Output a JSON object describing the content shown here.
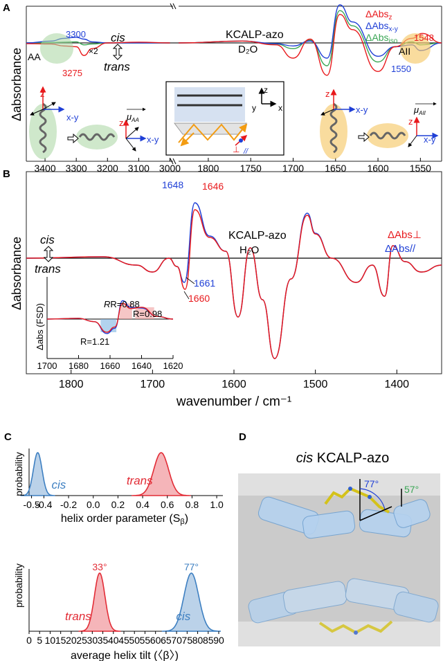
{
  "chart_data": [
    {
      "panel": "A",
      "type": "line",
      "ylabel": "Δabsorbance",
      "title": "KCALP-azo",
      "solvent": "D₂O",
      "state_top": "cis",
      "state_bottom": "trans",
      "legend": [
        "ΔAbs",
        "ΔAbs",
        "ΔAbs"
      ],
      "legend_sub": [
        "z",
        "x-y",
        "iso"
      ],
      "colors": [
        "#e8191c",
        "#1f3fd6",
        "#3aa655"
      ],
      "x_ticks_left": [
        "3400",
        "3300",
        "3200",
        "3100",
        "3000"
      ],
      "x_ticks_right": [
        "1800",
        "1750",
        "1700",
        "1650",
        "1600",
        "1550"
      ],
      "xlim_left": [
        3460,
        2990
      ],
      "xlim_right": [
        1835,
        1525
      ],
      "annotations": [
        "3300",
        "3275",
        "1548",
        "1550",
        "AA",
        "AII",
        "×2"
      ],
      "vector_labels": [
        "z",
        "x-y",
        "z",
        "x-y",
        "z",
        "x-y",
        "z",
        "x-y",
        "z",
        "y",
        "x",
        "⊥",
        "//"
      ],
      "moment_labels": [
        "μ",
        "AA",
        "μ",
        "AII"
      ],
      "series": [
        {
          "name": "ΔAbs z",
          "left": [
            [
              3460,
              -0.02
            ],
            [
              3380,
              -0.03
            ],
            [
              3340,
              -0.08
            ],
            [
              3300,
              -0.1
            ],
            [
              3275,
              -0.33
            ],
            [
              3250,
              -0.15
            ],
            [
              3200,
              0
            ],
            [
              3100,
              0.02
            ],
            [
              3000,
              0
            ]
          ],
          "right": [
            [
              1835,
              0
            ],
            [
              1760,
              0.05
            ],
            [
              1720,
              -0.05
            ],
            [
              1700,
              -0.4
            ],
            [
              1680,
              0.1
            ],
            [
              1660,
              -0.85
            ],
            [
              1645,
              0.75
            ],
            [
              1630,
              0.35
            ],
            [
              1600,
              -0.75
            ],
            [
              1580,
              -0.1
            ],
            [
              1560,
              0.12
            ],
            [
              1548,
              0.25
            ],
            [
              1525,
              0
            ]
          ]
        },
        {
          "name": "ΔAbs x-y",
          "left": [
            [
              3460,
              0
            ],
            [
              3380,
              0.05
            ],
            [
              3340,
              0.12
            ],
            [
              3300,
              0.15
            ],
            [
              3275,
              0.1
            ],
            [
              3250,
              0.03
            ],
            [
              3200,
              0
            ],
            [
              3100,
              0
            ],
            [
              3000,
              0
            ]
          ],
          "right": [
            [
              1835,
              0
            ],
            [
              1760,
              0.05
            ],
            [
              1720,
              -0.02
            ],
            [
              1700,
              -0.08
            ],
            [
              1680,
              0.05
            ],
            [
              1660,
              -0.4
            ],
            [
              1645,
              1.0
            ],
            [
              1630,
              0.55
            ],
            [
              1600,
              -0.35
            ],
            [
              1580,
              -0.1
            ],
            [
              1560,
              -0.05
            ],
            [
              1550,
              -0.2
            ],
            [
              1525,
              0
            ]
          ]
        },
        {
          "name": "ΔAbs iso",
          "left": [
            [
              3460,
              0
            ],
            [
              3380,
              0.01
            ],
            [
              3340,
              0.02
            ],
            [
              3300,
              0.03
            ],
            [
              3275,
              -0.05
            ],
            [
              3250,
              -0.03
            ],
            [
              3200,
              0
            ],
            [
              3100,
              0
            ],
            [
              3000,
              0
            ]
          ],
          "right": [
            [
              1835,
              0
            ],
            [
              1760,
              0.05
            ],
            [
              1720,
              -0.03
            ],
            [
              1700,
              -0.15
            ],
            [
              1680,
              0.07
            ],
            [
              1660,
              -0.6
            ],
            [
              1645,
              0.85
            ],
            [
              1630,
              0.45
            ],
            [
              1600,
              -0.5
            ],
            [
              1580,
              -0.1
            ],
            [
              1560,
              0.03
            ],
            [
              1550,
              -0.05
            ],
            [
              1525,
              0
            ]
          ]
        }
      ]
    },
    {
      "panel": "B",
      "type": "line",
      "ylabel": "Δabsorbance",
      "xlabel": "wavenumber / cm⁻¹",
      "title": "KCALP-azo",
      "solvent": "H₂O",
      "state_top": "cis",
      "state_bottom": "trans",
      "legend": [
        "ΔAbs⊥",
        "ΔAbs//"
      ],
      "colors": [
        "#e8191c",
        "#1f3fd6"
      ],
      "x_ticks": [
        "1800",
        "1700",
        "1600",
        "1500",
        "1400"
      ],
      "xlim": [
        1855,
        1345
      ],
      "annotations": [
        {
          "text": "1648",
          "color": "#1f3fd6"
        },
        {
          "text": "1646",
          "color": "#e8191c"
        },
        {
          "text": "1661",
          "color": "#1f3fd6"
        },
        {
          "text": "1660",
          "color": "#e8191c"
        }
      ],
      "series": [
        {
          "name": "ΔAbs⊥",
          "points": [
            [
              1855,
              0
            ],
            [
              1760,
              0.02
            ],
            [
              1720,
              -0.1
            ],
            [
              1700,
              -0.2
            ],
            [
              1680,
              0
            ],
            [
              1670,
              -0.12
            ],
            [
              1660,
              -0.45
            ],
            [
              1648,
              0.7
            ],
            [
              1630,
              0.3
            ],
            [
              1610,
              0.1
            ],
            [
              1595,
              -0.85
            ],
            [
              1580,
              0.15
            ],
            [
              1565,
              -0.6
            ],
            [
              1550,
              -1.45
            ],
            [
              1530,
              -0.3
            ],
            [
              1510,
              0.62
            ],
            [
              1500,
              0.35
            ],
            [
              1480,
              0
            ],
            [
              1450,
              -0.35
            ],
            [
              1430,
              -0.1
            ],
            [
              1415,
              -0.55
            ],
            [
              1405,
              0.18
            ],
            [
              1390,
              -0.05
            ],
            [
              1370,
              -0.2
            ],
            [
              1345,
              -0.1
            ]
          ]
        },
        {
          "name": "ΔAbs//",
          "points": [
            [
              1855,
              0
            ],
            [
              1760,
              0.02
            ],
            [
              1720,
              -0.1
            ],
            [
              1700,
              -0.2
            ],
            [
              1680,
              0
            ],
            [
              1670,
              -0.12
            ],
            [
              1661,
              -0.35
            ],
            [
              1648,
              0.8
            ],
            [
              1630,
              0.32
            ],
            [
              1610,
              0.1
            ],
            [
              1595,
              -0.85
            ],
            [
              1580,
              0.15
            ],
            [
              1565,
              -0.6
            ],
            [
              1550,
              -1.45
            ],
            [
              1530,
              -0.3
            ],
            [
              1510,
              0.65
            ],
            [
              1500,
              0.36
            ],
            [
              1480,
              0
            ],
            [
              1450,
              -0.35
            ],
            [
              1430,
              -0.1
            ],
            [
              1415,
              -0.55
            ],
            [
              1405,
              0.18
            ],
            [
              1390,
              -0.05
            ],
            [
              1370,
              -0.2
            ],
            [
              1345,
              -0.1
            ]
          ]
        }
      ],
      "inset": {
        "ylabel": "Δabs (FSD)",
        "x_ticks": [
          "1700",
          "1680",
          "1660",
          "1640",
          "1620"
        ],
        "xlim": [
          1700,
          1620
        ],
        "labels": [
          "R=0.88",
          "R=0.98",
          "R=1.21"
        ],
        "red": [
          [
            1700,
            0
          ],
          [
            1680,
            0.03
          ],
          [
            1670,
            -0.1
          ],
          [
            1662,
            -0.5
          ],
          [
            1657,
            -0.3
          ],
          [
            1652,
            0.6
          ],
          [
            1647,
            0.4
          ],
          [
            1640,
            0.45
          ],
          [
            1630,
            0.1
          ],
          [
            1620,
            0
          ]
        ],
        "blue": [
          [
            1700,
            0
          ],
          [
            1680,
            0.03
          ],
          [
            1670,
            -0.1
          ],
          [
            1662,
            -0.55
          ],
          [
            1657,
            -0.35
          ],
          [
            1652,
            0.7
          ],
          [
            1647,
            0.45
          ],
          [
            1640,
            0.42
          ],
          [
            1630,
            0.1
          ],
          [
            1620,
            0
          ]
        ]
      }
    },
    {
      "panel": "C-top",
      "type": "area",
      "ylabel": "probability",
      "xlabel": "helix order parameter (S",
      "xlabel_sub": "β",
      "xlabel_end": ")",
      "x_ticks": [
        "-0.5",
        "-0.4",
        "-0.2",
        "0.0",
        "0.2",
        "0.4",
        "0.6",
        "0.8",
        "1.0"
      ],
      "xlim": [
        -0.52,
        1.05
      ],
      "series": [
        {
          "name": "cis",
          "color": "#3d7fc1",
          "mean": -0.45,
          "sd": 0.035
        },
        {
          "name": "trans",
          "color": "#e22c36",
          "mean": 0.55,
          "sd": 0.06
        }
      ]
    },
    {
      "panel": "C-bottom",
      "type": "area",
      "ylabel": "probability",
      "xlabel": "average helix tilt (〈β〉)",
      "x_ticks": [
        "0",
        "5",
        "10",
        "15",
        "20",
        "25",
        "30",
        "35",
        "40",
        "45",
        "50",
        "55",
        "60",
        "65",
        "70",
        "75",
        "80",
        "85",
        "90"
      ],
      "xlim": [
        0,
        90
      ],
      "series": [
        {
          "name": "trans",
          "color": "#e22c36",
          "mean": 33.5,
          "sd": 2.5,
          "peak_label": "33°"
        },
        {
          "name": "cis",
          "color": "#3d7fc1",
          "mean": 77,
          "sd": 3.5,
          "peak_label": "77°"
        }
      ]
    }
  ],
  "panels": {
    "a": "A",
    "b": "B",
    "c": "C",
    "d": "D"
  },
  "structure": {
    "title_italic": "cis",
    "title_rest": "KCALP-azo",
    "angle1": "77°",
    "angle2": "57°"
  }
}
